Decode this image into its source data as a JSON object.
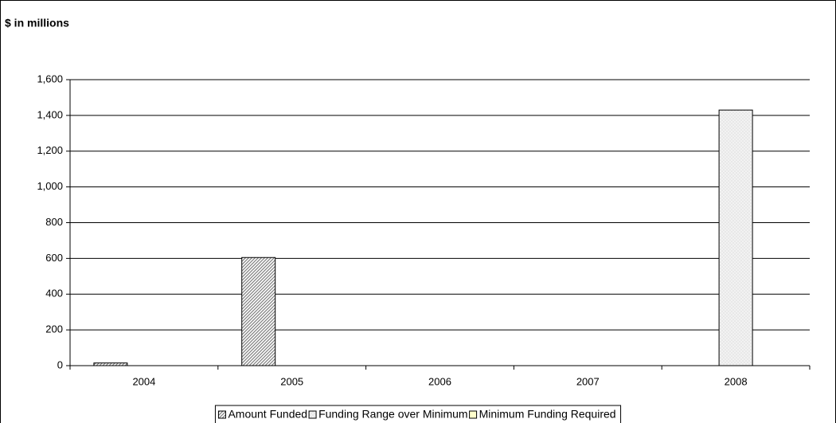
{
  "chart_data": {
    "type": "bar",
    "title": "$ in millions",
    "categories": [
      "2004",
      "2005",
      "2006",
      "2007",
      "2008"
    ],
    "series": [
      {
        "name": "Amount Funded",
        "color": "#808080",
        "values": [
          15,
          605,
          0,
          0,
          0
        ]
      },
      {
        "name": "Funding Range over Minimum",
        "color": "#c8c8c8",
        "values": [
          0,
          0,
          0,
          0,
          1430
        ]
      },
      {
        "name": "Minimum Funding Required",
        "color": "#ffffcc",
        "values": [
          0,
          0,
          0,
          0,
          0
        ]
      }
    ],
    "ylim": [
      0,
      1600
    ],
    "yticks": [
      0,
      200,
      400,
      600,
      800,
      {
        "value": 1000,
        "label": "1,000"
      },
      {
        "value": 1200,
        "label": "1,200"
      },
      {
        "value": 1400,
        "label": "1,400"
      },
      {
        "value": 1600,
        "label": "1,600"
      }
    ],
    "grid": true,
    "legend": "bottom"
  }
}
